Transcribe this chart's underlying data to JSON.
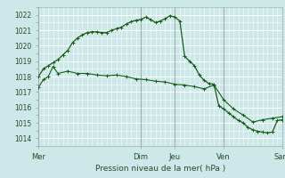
{
  "background_color": "#cce8e8",
  "plot_bg_color": "#cce8e8",
  "grid_color": "#ffffff",
  "line_color": "#1a5c1a",
  "xlabel": "Pression niveau de la mer( hPa )",
  "ylim": [
    1013.5,
    1022.5
  ],
  "yticks": [
    1014,
    1015,
    1016,
    1017,
    1018,
    1019,
    1020,
    1021,
    1022
  ],
  "day_labels": [
    "Mer",
    "Dim",
    "Jeu",
    "Ven",
    "Sam"
  ],
  "day_positions": [
    0,
    126,
    168,
    228,
    300
  ],
  "xlim": [
    0,
    300
  ],
  "series1_x": [
    0,
    6,
    12,
    18,
    24,
    36,
    48,
    60,
    72,
    84,
    96,
    108,
    120,
    132,
    144,
    156,
    168,
    180,
    192,
    204,
    216,
    228,
    240,
    252,
    264,
    276,
    288,
    300
  ],
  "series1_y": [
    1017.3,
    1017.8,
    1018.0,
    1018.65,
    1018.2,
    1018.35,
    1018.2,
    1018.2,
    1018.1,
    1018.05,
    1018.1,
    1018.0,
    1017.85,
    1017.8,
    1017.7,
    1017.65,
    1017.5,
    1017.45,
    1017.35,
    1017.2,
    1017.45,
    1016.5,
    1015.9,
    1015.5,
    1015.05,
    1015.2,
    1015.3,
    1015.4
  ],
  "series2_x": [
    0,
    6,
    12,
    18,
    24,
    30,
    36,
    42,
    48,
    54,
    60,
    66,
    72,
    78,
    84,
    90,
    96,
    102,
    108,
    114,
    120,
    126,
    132,
    138,
    144,
    150,
    156,
    162,
    168,
    174,
    180,
    186,
    192,
    198,
    204,
    210,
    216,
    222,
    228,
    234,
    240,
    246,
    252,
    258,
    264,
    270,
    276,
    282,
    288,
    294,
    300
  ],
  "series2_y": [
    1018.0,
    1018.5,
    1018.7,
    1018.9,
    1019.1,
    1019.4,
    1019.7,
    1020.2,
    1020.5,
    1020.7,
    1020.85,
    1020.9,
    1020.9,
    1020.85,
    1020.85,
    1021.0,
    1021.1,
    1021.2,
    1021.4,
    1021.55,
    1021.65,
    1021.7,
    1021.85,
    1021.7,
    1021.5,
    1021.6,
    1021.75,
    1021.95,
    1021.85,
    1021.6,
    1019.3,
    1019.0,
    1018.7,
    1018.1,
    1017.75,
    1017.55,
    1017.5,
    1016.1,
    1015.9,
    1015.65,
    1015.4,
    1015.15,
    1015.0,
    1014.7,
    1014.55,
    1014.45,
    1014.4,
    1014.35,
    1014.4,
    1015.15,
    1015.2
  ]
}
